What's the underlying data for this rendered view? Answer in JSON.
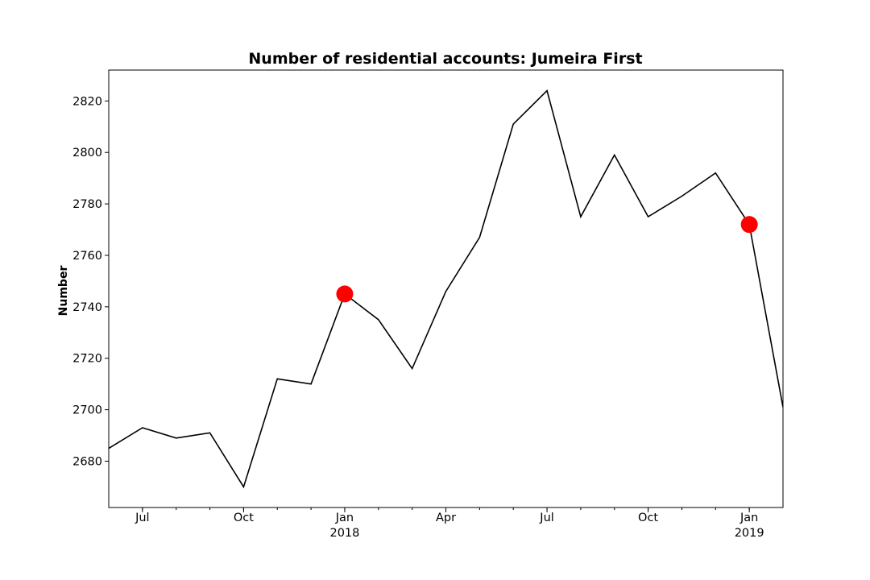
{
  "chart_data": {
    "type": "line",
    "title": "Number of residential accounts: Jumeira First",
    "xlabel": "",
    "ylabel": "Number",
    "x": [
      "2017-06",
      "2017-07",
      "2017-08",
      "2017-09",
      "2017-10",
      "2017-11",
      "2017-12",
      "2018-01",
      "2018-02",
      "2018-03",
      "2018-04",
      "2018-05",
      "2018-06",
      "2018-07",
      "2018-08",
      "2018-09",
      "2018-10",
      "2018-11",
      "2018-12",
      "2019-01",
      "2019-02"
    ],
    "series": [
      {
        "color": "#000000",
        "values": [
          2685,
          2693,
          2689,
          2691,
          2670,
          2712,
          2710,
          2745,
          2735,
          2716,
          2746,
          2767,
          2811,
          2824,
          2775,
          2799,
          2775,
          2783,
          2792,
          2772,
          2701
        ]
      }
    ],
    "highlights": [
      {
        "x": "2018-01",
        "value": 2745,
        "color": "#ff0000"
      },
      {
        "x": "2019-01",
        "value": 2772,
        "color": "#ff0000"
      }
    ],
    "ylim": [
      2662,
      2832
    ],
    "xlim": [
      "2017-06",
      "2019-02"
    ],
    "y_ticks": [
      "2680",
      "2700",
      "2720",
      "2740",
      "2760",
      "2780",
      "2800",
      "2820"
    ],
    "x_ticks": [
      {
        "x": "2017-07",
        "label": "Jul",
        "sublabel": ""
      },
      {
        "x": "2017-10",
        "label": "Oct",
        "sublabel": ""
      },
      {
        "x": "2018-01",
        "label": "Jan",
        "sublabel": "2018"
      },
      {
        "x": "2018-04",
        "label": "Apr",
        "sublabel": ""
      },
      {
        "x": "2018-07",
        "label": "Jul",
        "sublabel": ""
      },
      {
        "x": "2018-10",
        "label": "Oct",
        "sublabel": ""
      },
      {
        "x": "2019-01",
        "label": "Jan",
        "sublabel": "2019"
      }
    ],
    "grid": false,
    "legend": "none"
  }
}
